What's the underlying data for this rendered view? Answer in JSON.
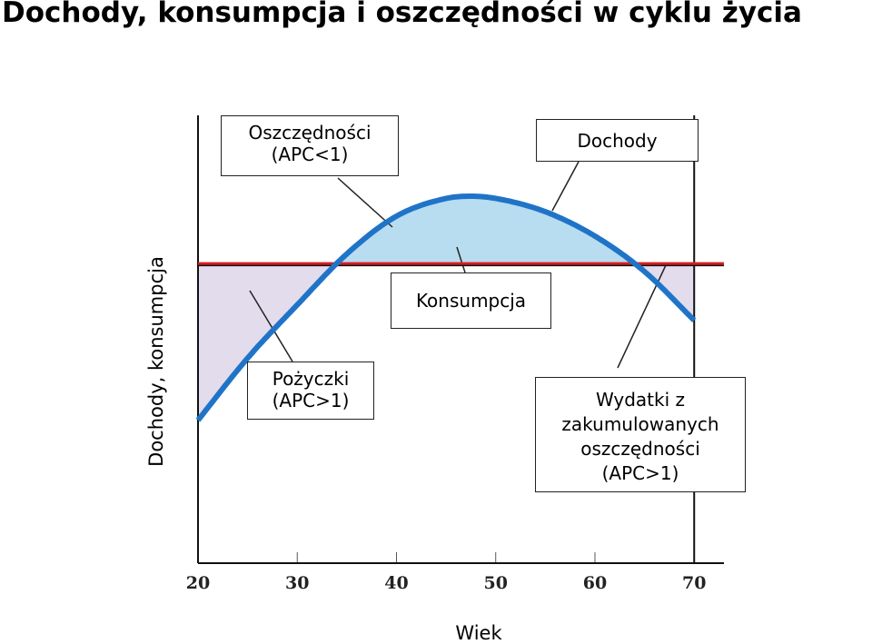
{
  "title": "Dochody, konsumpcja i oszczędności w cyklu życia",
  "chart_data": {
    "type": "line",
    "xlabel": "Wiek",
    "ylabel": "Dochody, konsumpcja",
    "xlim": [
      20,
      73
    ],
    "x_ticks": [
      "20",
      "30",
      "40",
      "50",
      "60",
      "70"
    ],
    "series": [
      {
        "name": "Dochody",
        "color": "#1f74c8",
        "x": [
          20,
          25,
          30,
          35,
          40,
          45,
          47.5,
          50,
          55,
          60,
          65,
          70
        ],
        "y": [
          0.1,
          0.38,
          0.62,
          0.85,
          1.02,
          1.1,
          1.11,
          1.1,
          1.04,
          0.93,
          0.77,
          0.55
        ]
      },
      {
        "name": "Konsumpcja",
        "color": "#d81e1e",
        "x": [
          20,
          73
        ],
        "y": [
          0.8,
          0.8
        ]
      }
    ],
    "shaded_regions": [
      {
        "label": "Oszczędności (APC<1)",
        "color": "#b8dcf0"
      },
      {
        "label": "Pożyczki (APC>1)",
        "color": "#e2dced"
      },
      {
        "label": "Wydatki z zakumulowanych oszczędności (APC>1)",
        "color": "#e2dced"
      }
    ]
  },
  "annotations": {
    "savings_line1": "Oszczędności",
    "savings_line2": "(APC<1)",
    "income": "Dochody",
    "consumption": "Konsumpcja",
    "borrow_line1": "Pożyczki",
    "borrow_line2": "(APC>1)",
    "spend_line1": "Wydatki z",
    "spend_line2": "zakumulowanych",
    "spend_line3": "oszczędności",
    "spend_line4": "(APC>1)"
  }
}
